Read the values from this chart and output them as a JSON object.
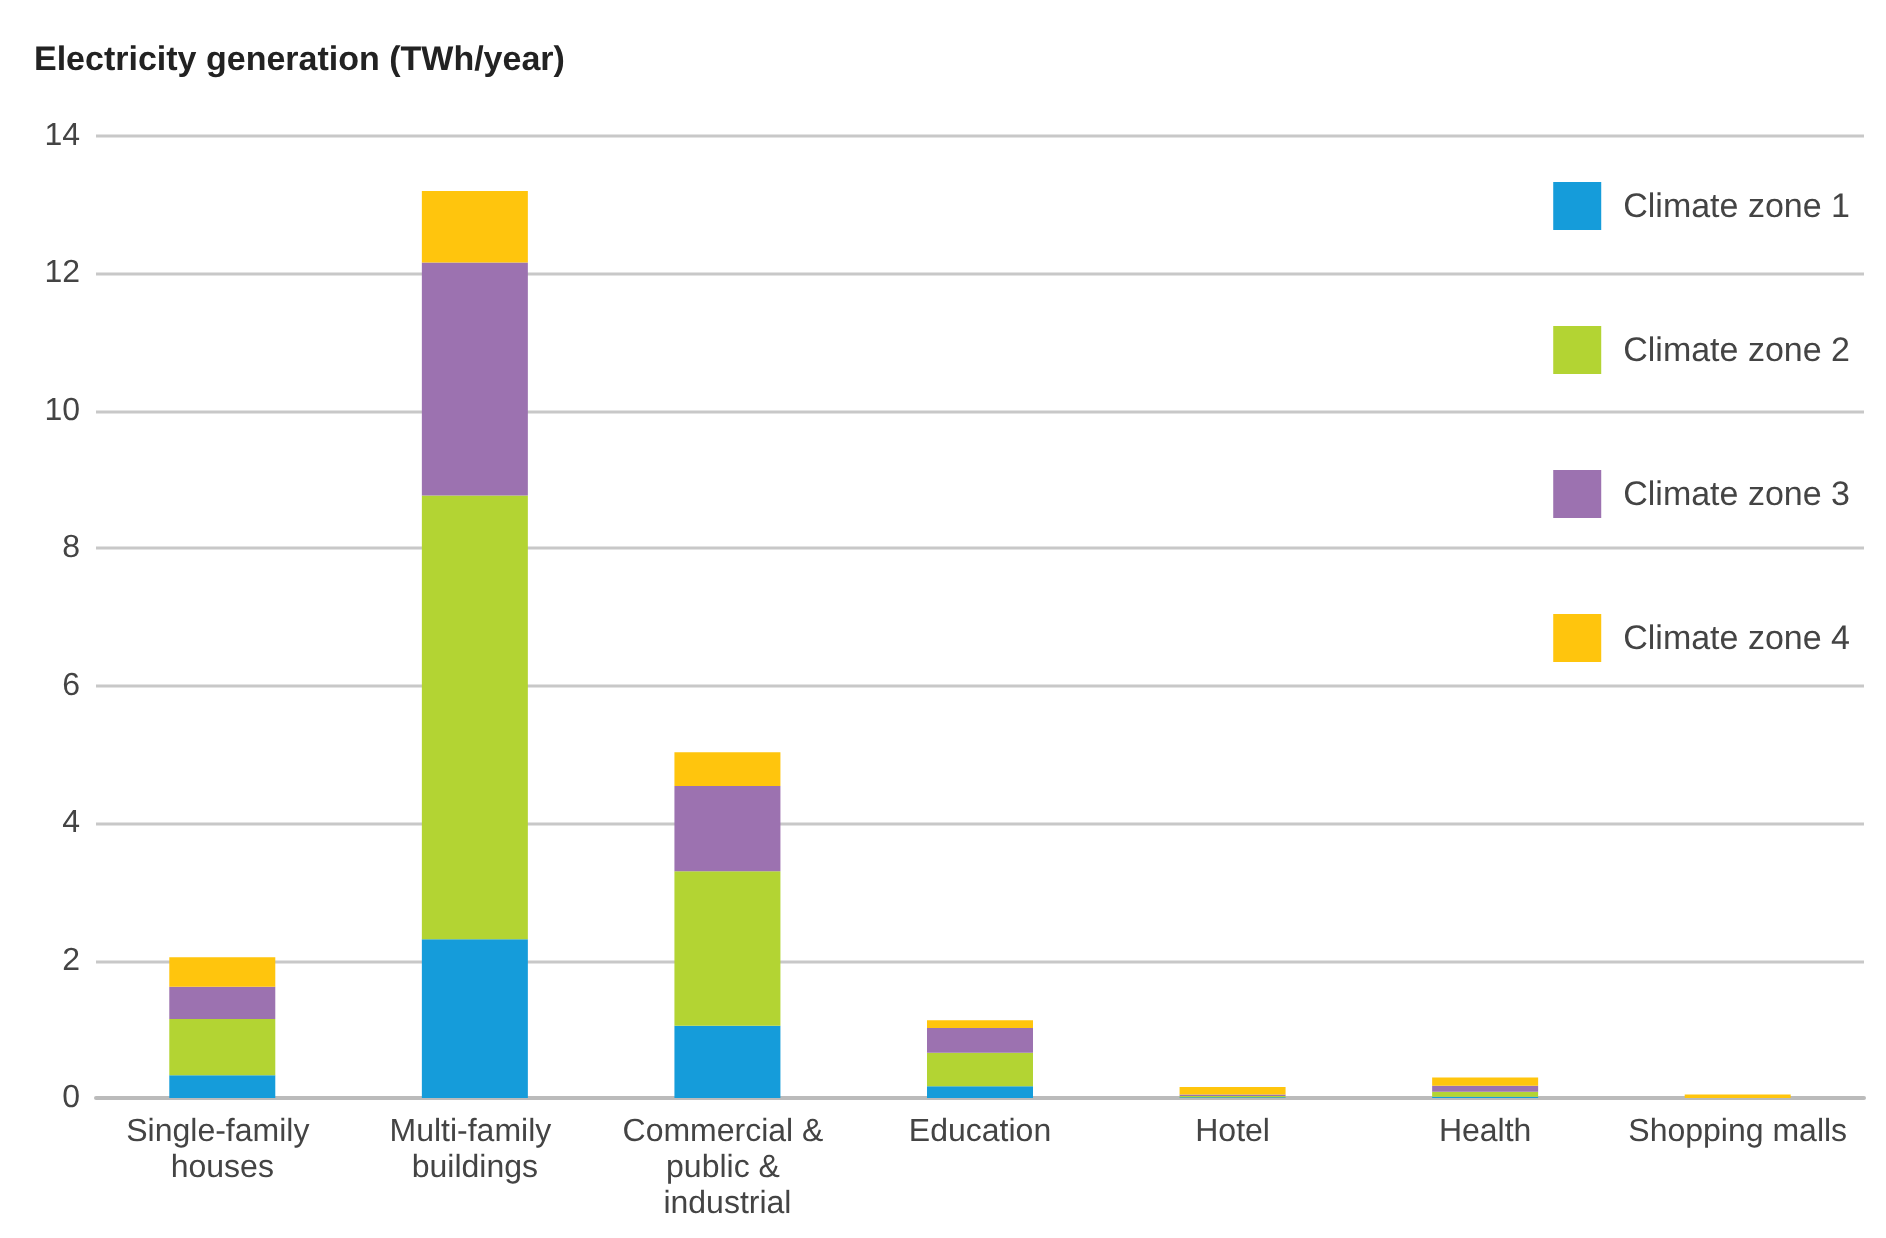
{
  "chart_data": {
    "type": "bar",
    "title": "Electricity generation (TWh/year)",
    "stacked": true,
    "categories": [
      "Single-family houses",
      "Multi-family buildings",
      "Commercial & public & industrial",
      "Education",
      "Hotel",
      "Health",
      "Shopping malls"
    ],
    "series": [
      {
        "name": "Climate zone 1",
        "color": "#159cda",
        "values": [
          0.33,
          2.31,
          1.05,
          0.17,
          0.01,
          0.02,
          0
        ]
      },
      {
        "name": "Climate zone 2",
        "color": "#b3d433",
        "values": [
          0.82,
          6.46,
          2.25,
          0.49,
          0.02,
          0.07,
          0
        ]
      },
      {
        "name": "Climate zone 3",
        "color": "#9c72b0",
        "values": [
          0.47,
          3.39,
          1.24,
          0.36,
          0.02,
          0.09,
          0
        ]
      },
      {
        "name": "Climate zone 4",
        "color": "#ffc50d",
        "values": [
          0.43,
          1.04,
          0.49,
          0.11,
          0.11,
          0.12,
          0.05
        ]
      }
    ],
    "ylim": [
      0,
      14
    ],
    "yticks": [
      0,
      2,
      4,
      6,
      8,
      10,
      12,
      14
    ],
    "grid": "y",
    "legend": "top right"
  }
}
